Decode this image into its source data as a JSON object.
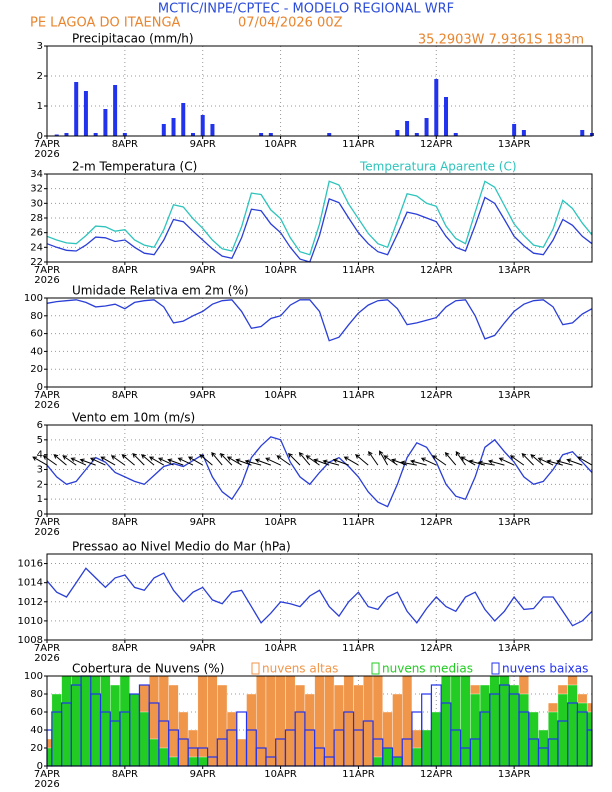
{
  "header": {
    "title": "MCTIC/INPE/CPTEC - MODELO REGIONAL WRF",
    "location": "PE LAGOA DO ITAENGA",
    "run": "07/04/2026 00Z",
    "coords": "35.2903W 7.9361S 183m"
  },
  "chart_data": [
    {
      "type": "bar",
      "title": "Precipitacao (mm/h)",
      "year": "2026",
      "color": "#2233ee",
      "x": [
        0,
        3,
        6,
        9,
        12,
        15,
        18,
        21,
        24,
        27,
        30,
        33,
        36,
        39,
        42,
        45,
        48,
        51,
        54,
        57,
        60,
        63,
        66,
        69,
        72,
        75,
        78,
        81,
        84,
        87,
        90,
        93,
        96,
        99,
        102,
        105,
        108,
        111,
        114,
        117,
        120,
        123,
        126,
        129,
        132,
        135,
        138,
        141,
        144,
        147,
        150,
        153,
        156,
        159,
        162,
        165,
        168
      ],
      "values": [
        0,
        0.05,
        0.1,
        1.8,
        1.5,
        0.1,
        0.9,
        1.7,
        0.1,
        0,
        0,
        0,
        0.4,
        0.6,
        1.1,
        0.1,
        0.7,
        0.4,
        0,
        0,
        0,
        0,
        0.1,
        0.1,
        0,
        0,
        0,
        0,
        0,
        0.1,
        0,
        0,
        0,
        0,
        0,
        0,
        0.2,
        0.5,
        0.1,
        0.6,
        1.9,
        1.3,
        0.1,
        0,
        0,
        0,
        0,
        0,
        0.4,
        0.2,
        0,
        0,
        0,
        0,
        0,
        0.2,
        0.1
      ],
      "xlim": [
        0,
        168
      ],
      "ylim": [
        0,
        3
      ],
      "yticks": [
        0,
        1,
        2,
        3
      ],
      "xticks": [
        {
          "value": 0,
          "label": "7APR"
        },
        {
          "value": 24,
          "label": "8APR"
        },
        {
          "value": 48,
          "label": "9APR"
        },
        {
          "value": 72,
          "label": "10APR"
        },
        {
          "value": 96,
          "label": "11APR"
        },
        {
          "value": 120,
          "label": "12APR"
        },
        {
          "value": 144,
          "label": "13APR"
        }
      ],
      "grid": true
    },
    {
      "type": "line",
      "title": "2-m Temperatura (C)",
      "year": "2026",
      "x": [
        0,
        3,
        6,
        9,
        12,
        15,
        18,
        21,
        24,
        27,
        30,
        33,
        36,
        39,
        42,
        45,
        48,
        51,
        54,
        57,
        60,
        63,
        66,
        69,
        72,
        75,
        78,
        81,
        84,
        87,
        90,
        93,
        96,
        99,
        102,
        105,
        108,
        111,
        114,
        117,
        120,
        123,
        126,
        129,
        132,
        135,
        138,
        141,
        144,
        147,
        150,
        153,
        156,
        159,
        162,
        165,
        168
      ],
      "series": [
        {
          "color": "#2b3fd6",
          "values": [
            24.5,
            24.0,
            23.6,
            23.5,
            24.3,
            25.4,
            25.3,
            24.8,
            25.0,
            24.0,
            23.2,
            23.0,
            25.0,
            27.8,
            27.5,
            26.2,
            25.0,
            23.8,
            22.8,
            22.5,
            25.3,
            29.2,
            29.0,
            27.2,
            26.0,
            24.0,
            22.4,
            22.0,
            25.6,
            30.6,
            30.1,
            28.0,
            26.0,
            24.5,
            23.4,
            23.0,
            25.8,
            28.8,
            28.5,
            28.0,
            27.5,
            25.5,
            24.0,
            23.5,
            27.0,
            30.8,
            30.0,
            27.8,
            25.5,
            24.2,
            23.2,
            23.0,
            25.0,
            27.8,
            27.0,
            25.5,
            24.5
          ]
        },
        {
          "name": "Temperatura Aparente (C)",
          "color": "#2ec4bc",
          "values": [
            25.5,
            25.0,
            24.6,
            24.5,
            25.6,
            26.9,
            26.8,
            26.2,
            26.4,
            25.0,
            24.3,
            24.0,
            26.4,
            29.8,
            29.5,
            27.9,
            26.6,
            25.0,
            23.8,
            23.5,
            26.8,
            31.4,
            31.2,
            29.1,
            27.9,
            25.3,
            23.4,
            23.0,
            27.2,
            33.0,
            32.5,
            29.9,
            27.9,
            25.9,
            24.5,
            24.0,
            27.6,
            31.3,
            31.0,
            30.0,
            29.6,
            26.9,
            25.2,
            24.5,
            28.8,
            33.0,
            32.2,
            29.7,
            27.2,
            25.6,
            24.3,
            24.0,
            26.5,
            30.4,
            29.3,
            27.3,
            25.7
          ]
        }
      ],
      "xlim": [
        0,
        168
      ],
      "ylim": [
        22,
        34
      ],
      "yticks": [
        22,
        24,
        26,
        28,
        30,
        32,
        34
      ],
      "xticks": [
        {
          "value": 0,
          "label": "7APR"
        },
        {
          "value": 24,
          "label": "8APR"
        },
        {
          "value": 48,
          "label": "9APR"
        },
        {
          "value": 72,
          "label": "10APR"
        },
        {
          "value": 96,
          "label": "11APR"
        },
        {
          "value": 120,
          "label": "12APR"
        },
        {
          "value": 144,
          "label": "13APR"
        }
      ],
      "grid": true
    },
    {
      "type": "line",
      "title": "Umidade Relativa em 2m (%)",
      "year": "2026",
      "x": [
        0,
        3,
        6,
        9,
        12,
        15,
        18,
        21,
        24,
        27,
        30,
        33,
        36,
        39,
        42,
        45,
        48,
        51,
        54,
        57,
        60,
        63,
        66,
        69,
        72,
        75,
        78,
        81,
        84,
        87,
        90,
        93,
        96,
        99,
        102,
        105,
        108,
        111,
        114,
        117,
        120,
        123,
        126,
        129,
        132,
        135,
        138,
        141,
        144,
        147,
        150,
        153,
        156,
        159,
        162,
        165,
        168
      ],
      "series": [
        {
          "color": "#2b3fd6",
          "values": [
            94,
            96,
            97,
            98,
            95,
            90,
            91,
            93,
            88,
            95,
            97,
            98,
            90,
            72,
            74,
            80,
            85,
            93,
            97,
            98,
            85,
            66,
            68,
            77,
            80,
            92,
            98,
            98,
            85,
            52,
            56,
            70,
            83,
            92,
            97,
            98,
            88,
            70,
            72,
            75,
            78,
            90,
            97,
            98,
            80,
            54,
            58,
            72,
            85,
            93,
            97,
            98,
            90,
            70,
            72,
            82,
            88
          ]
        }
      ],
      "xlim": [
        0,
        168
      ],
      "ylim": [
        0,
        100
      ],
      "yticks": [
        0,
        20,
        40,
        60,
        80,
        100
      ],
      "xticks": [
        {
          "value": 0,
          "label": "7APR"
        },
        {
          "value": 24,
          "label": "8APR"
        },
        {
          "value": 48,
          "label": "9APR"
        },
        {
          "value": 72,
          "label": "10APR"
        },
        {
          "value": 96,
          "label": "11APR"
        },
        {
          "value": 120,
          "label": "12APR"
        },
        {
          "value": 144,
          "label": "13APR"
        }
      ],
      "grid": true
    },
    {
      "type": "line",
      "title": "Vento em 10m (m/s)",
      "year": "2026",
      "x": [
        0,
        3,
        6,
        9,
        12,
        15,
        18,
        21,
        24,
        27,
        30,
        33,
        36,
        39,
        42,
        45,
        48,
        51,
        54,
        57,
        60,
        63,
        66,
        69,
        72,
        75,
        78,
        81,
        84,
        87,
        90,
        93,
        96,
        99,
        102,
        105,
        108,
        111,
        114,
        117,
        120,
        123,
        126,
        129,
        132,
        135,
        138,
        141,
        144,
        147,
        150,
        153,
        156,
        159,
        162,
        165,
        168
      ],
      "series": [
        {
          "color": "#2b3fd6",
          "values": [
            3.3,
            2.5,
            2.0,
            2.2,
            3.0,
            3.8,
            3.5,
            2.8,
            2.5,
            2.2,
            2.0,
            2.6,
            3.2,
            3.4,
            3.2,
            3.6,
            4.0,
            2.5,
            1.5,
            1.0,
            2.0,
            3.8,
            4.6,
            5.2,
            5.0,
            3.5,
            2.5,
            2.0,
            2.8,
            3.5,
            3.8,
            3.2,
            2.5,
            1.5,
            0.8,
            0.5,
            2.0,
            3.8,
            4.8,
            4.5,
            3.5,
            2.0,
            1.2,
            1.0,
            2.5,
            4.5,
            5.0,
            4.2,
            3.5,
            2.5,
            2.0,
            2.2,
            3.0,
            4.0,
            4.2,
            3.5,
            2.8
          ]
        }
      ],
      "direction": [
        120,
        125,
        130,
        125,
        115,
        110,
        115,
        120,
        125,
        130,
        135,
        130,
        120,
        115,
        110,
        115,
        120,
        130,
        140,
        135,
        120,
        110,
        105,
        110,
        115,
        125,
        135,
        140,
        125,
        110,
        105,
        110,
        120,
        130,
        145,
        150,
        125,
        110,
        100,
        105,
        115,
        125,
        140,
        145,
        120,
        105,
        100,
        105,
        115,
        125,
        135,
        130,
        115,
        105,
        105,
        110,
        120
      ],
      "xlim": [
        0,
        168
      ],
      "ylim": [
        0,
        6
      ],
      "yticks": [
        0,
        1,
        2,
        3,
        4,
        5,
        6
      ],
      "xticks": [
        {
          "value": 0,
          "label": "7APR"
        },
        {
          "value": 24,
          "label": "8APR"
        },
        {
          "value": 48,
          "label": "9APR"
        },
        {
          "value": 72,
          "label": "10APR"
        },
        {
          "value": 96,
          "label": "11APR"
        },
        {
          "value": 120,
          "label": "12APR"
        },
        {
          "value": 144,
          "label": "13APR"
        }
      ],
      "grid": true
    },
    {
      "type": "line",
      "title": "Pressao ao Nivel Medio do Mar (hPa)",
      "year": "2026",
      "x": [
        0,
        3,
        6,
        9,
        12,
        15,
        18,
        21,
        24,
        27,
        30,
        33,
        36,
        39,
        42,
        45,
        48,
        51,
        54,
        57,
        60,
        63,
        66,
        69,
        72,
        75,
        78,
        81,
        84,
        87,
        90,
        93,
        96,
        99,
        102,
        105,
        108,
        111,
        114,
        117,
        120,
        123,
        126,
        129,
        132,
        135,
        138,
        141,
        144,
        147,
        150,
        153,
        156,
        159,
        162,
        165,
        168
      ],
      "series": [
        {
          "color": "#2b3fd6",
          "values": [
            1014.2,
            1013.0,
            1012.5,
            1014.0,
            1015.5,
            1014.5,
            1013.5,
            1014.5,
            1014.8,
            1013.5,
            1013.2,
            1014.5,
            1015.0,
            1013.2,
            1012.0,
            1013.0,
            1013.5,
            1012.2,
            1011.8,
            1013.0,
            1013.2,
            1011.5,
            1009.8,
            1010.8,
            1012.0,
            1011.8,
            1011.5,
            1012.6,
            1013.2,
            1011.5,
            1010.5,
            1012.0,
            1013.0,
            1011.5,
            1011.2,
            1012.5,
            1013.0,
            1011.0,
            1009.8,
            1011.3,
            1012.5,
            1011.5,
            1011.0,
            1012.5,
            1013.0,
            1011.2,
            1010.0,
            1011.0,
            1012.5,
            1011.2,
            1011.3,
            1012.5,
            1012.5,
            1011.0,
            1009.5,
            1010.0,
            1011.0
          ]
        }
      ],
      "xlim": [
        0,
        168
      ],
      "ylim": [
        1008,
        1017
      ],
      "yticks": [
        1008,
        1010,
        1012,
        1014,
        1016
      ],
      "xticks": [
        {
          "value": 0,
          "label": "7APR"
        },
        {
          "value": 24,
          "label": "8APR"
        },
        {
          "value": 48,
          "label": "9APR"
        },
        {
          "value": 72,
          "label": "10APR"
        },
        {
          "value": 96,
          "label": "11APR"
        },
        {
          "value": 120,
          "label": "12APR"
        },
        {
          "value": 144,
          "label": "13APR"
        }
      ],
      "grid": true
    },
    {
      "type": "bar",
      "title": "Cobertura de Nuvens (%)",
      "year": "2026",
      "x": [
        0,
        3,
        6,
        9,
        12,
        15,
        18,
        21,
        24,
        27,
        30,
        33,
        36,
        39,
        42,
        45,
        48,
        51,
        54,
        57,
        60,
        63,
        66,
        69,
        72,
        75,
        78,
        81,
        84,
        87,
        90,
        93,
        96,
        99,
        102,
        105,
        108,
        111,
        114,
        117,
        120,
        123,
        126,
        129,
        132,
        135,
        138,
        141,
        144,
        147,
        150,
        153,
        156,
        159,
        162,
        165,
        168
      ],
      "series": [
        {
          "name": "nuvens altas",
          "color": "#f0964a",
          "values": [
            30,
            50,
            60,
            80,
            90,
            70,
            60,
            40,
            60,
            80,
            90,
            100,
            100,
            90,
            60,
            40,
            100,
            100,
            90,
            60,
            30,
            80,
            100,
            100,
            100,
            100,
            90,
            80,
            100,
            100,
            90,
            100,
            90,
            100,
            100,
            60,
            80,
            100,
            40,
            30,
            20,
            30,
            40,
            80,
            90,
            60,
            40,
            80,
            80,
            100,
            60,
            40,
            70,
            90,
            100,
            80,
            70
          ]
        },
        {
          "name": "nuvens medias",
          "color": "#22cc22",
          "values": [
            20,
            80,
            100,
            100,
            100,
            100,
            100,
            90,
            100,
            80,
            60,
            30,
            20,
            10,
            0,
            10,
            10,
            0,
            0,
            0,
            0,
            0,
            0,
            0,
            0,
            0,
            0,
            0,
            0,
            0,
            0,
            0,
            0,
            0,
            10,
            20,
            10,
            0,
            20,
            40,
            60,
            100,
            100,
            100,
            80,
            90,
            100,
            100,
            90,
            80,
            60,
            40,
            60,
            80,
            90,
            70,
            60
          ]
        },
        {
          "name": "nuvens baixas",
          "color": "#2233ee",
          "outline": true,
          "values": [
            40,
            60,
            70,
            90,
            100,
            80,
            60,
            50,
            60,
            80,
            90,
            70,
            50,
            40,
            30,
            20,
            20,
            10,
            30,
            40,
            60,
            40,
            20,
            10,
            30,
            40,
            60,
            40,
            20,
            10,
            40,
            60,
            40,
            50,
            30,
            20,
            10,
            30,
            60,
            80,
            90,
            70,
            40,
            20,
            30,
            60,
            80,
            90,
            80,
            60,
            30,
            20,
            30,
            50,
            70,
            60,
            40
          ]
        }
      ],
      "xlim": [
        0,
        168
      ],
      "ylim": [
        0,
        100
      ],
      "yticks": [
        0,
        20,
        40,
        60,
        80,
        100
      ],
      "xticks": [
        {
          "value": 0,
          "label": "7APR"
        },
        {
          "value": 24,
          "label": "8APR"
        },
        {
          "value": 48,
          "label": "9APR"
        },
        {
          "value": 72,
          "label": "10APR"
        },
        {
          "value": 96,
          "label": "11APR"
        },
        {
          "value": 120,
          "label": "12APR"
        },
        {
          "value": 144,
          "label": "13APR"
        }
      ],
      "grid": true
    }
  ]
}
